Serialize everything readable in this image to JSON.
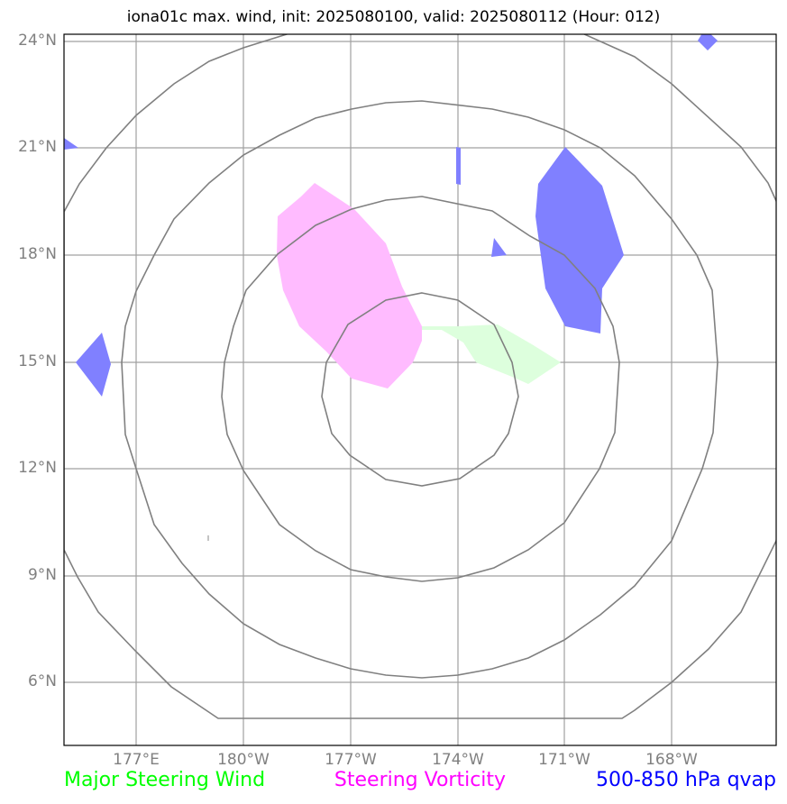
{
  "title": "iona01c max. wind, init: 2025080100, valid: 2025080112 (Hour: 012)",
  "map": {
    "lat_labels": [
      "24°N",
      "21°N",
      "18°N",
      "15°N",
      "12°N",
      "9°N",
      "6°N"
    ],
    "lon_labels": [
      "177°E",
      "180°W",
      "177°W",
      "174°W",
      "171°W",
      "168°W"
    ],
    "lat_values": [
      24,
      21,
      18,
      15,
      12,
      9,
      6
    ],
    "lon_values": [
      177,
      180,
      -177,
      -174,
      -171,
      -168
    ],
    "extent": {
      "lon": [
        175,
        -165
      ],
      "lat": [
        4.4,
        24.2
      ]
    },
    "range_rings": 4,
    "colors": {
      "grid": "#a0a0a0",
      "rings": "#808080",
      "steering_wind": "#ddffdd",
      "steering_vorticity": "#ffbbff",
      "qvap": "#8080ff"
    }
  },
  "legend": {
    "wind": "Major Steering Wind",
    "wind_color": "#00ff00",
    "vorticity": "Steering Vorticity",
    "vorticity_color": "#ff00ff",
    "qvap": "500-850 hPa qvap",
    "qvap_color": "#0000ff"
  }
}
